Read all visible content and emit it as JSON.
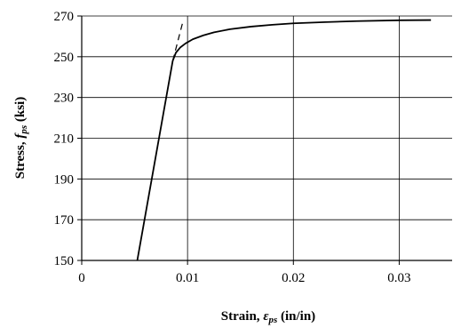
{
  "chart_data": {
    "type": "line",
    "title": "",
    "xlabel": {
      "prefix": "Strain, ",
      "symbol": "ε",
      "subscript": "ps",
      "suffix": " (in/in)"
    },
    "ylabel": {
      "prefix": "Stress, ",
      "symbol": "f",
      "subscript": "ps",
      "suffix": " (ksi)"
    },
    "xlim": [
      0,
      0.035
    ],
    "ylim": [
      150,
      270
    ],
    "xticks": [
      0,
      0.01,
      0.02,
      0.03
    ],
    "xtick_labels": [
      "0",
      "0.01",
      "0.02",
      "0.03"
    ],
    "yticks": [
      150,
      170,
      190,
      210,
      230,
      250,
      270
    ],
    "ytick_labels": [
      "150",
      "170",
      "190",
      "210",
      "230",
      "250",
      "270"
    ],
    "grid": true,
    "legend": "none",
    "series": [
      {
        "style": "solid",
        "color": "#000000",
        "points": [
          [
            0.00525,
            150
          ],
          [
            0.0086,
            248
          ],
          [
            0.0089,
            252
          ],
          [
            0.0093,
            254.5
          ],
          [
            0.0098,
            256.5
          ],
          [
            0.0105,
            258.6
          ],
          [
            0.0115,
            260.5
          ],
          [
            0.0125,
            262
          ],
          [
            0.014,
            263.5
          ],
          [
            0.016,
            264.8
          ],
          [
            0.018,
            265.7
          ],
          [
            0.02,
            266.4
          ],
          [
            0.023,
            267
          ],
          [
            0.026,
            267.5
          ],
          [
            0.03,
            267.9
          ],
          [
            0.033,
            268
          ]
        ]
      },
      {
        "style": "dashed",
        "color": "#000000",
        "points": [
          [
            0.0086,
            248
          ],
          [
            0.0096,
            268
          ]
        ]
      }
    ]
  }
}
